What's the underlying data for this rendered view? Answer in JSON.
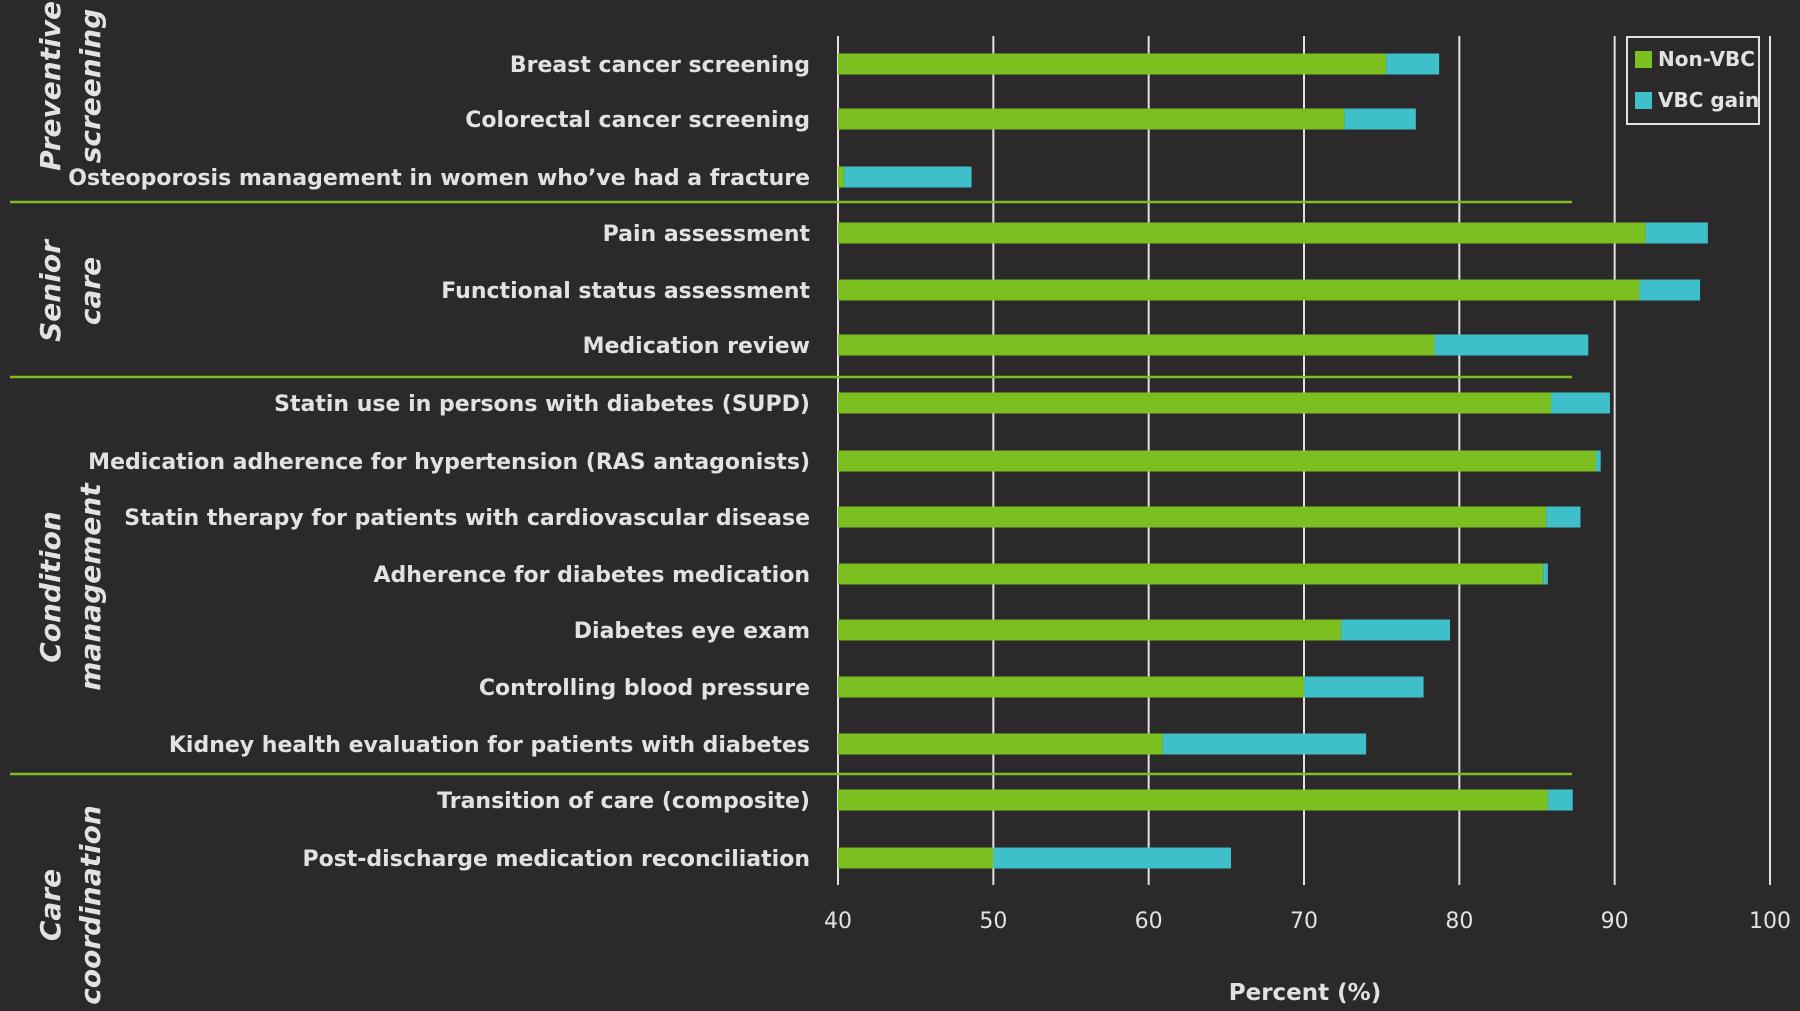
{
  "chart_data": {
    "type": "bar",
    "orientation": "horizontal",
    "stacked": true,
    "xlabel": "Percent (%)",
    "xlim": [
      40,
      100
    ],
    "xticks": [
      40,
      50,
      60,
      70,
      80,
      90,
      100
    ],
    "grid": "vertical",
    "legend_position": "top-right",
    "colors": {
      "Non-VBC": "#7bbf21",
      "VBC gain": "#3ebfc9",
      "background": "#2b292a",
      "text": "#e2e2e2",
      "gridline": "#e2e2e2",
      "divider": "#7bbf21"
    },
    "series_names": [
      "Non-VBC",
      "VBC gain"
    ],
    "groups": [
      {
        "label": [
          "Preventive",
          "screening"
        ],
        "items": [
          {
            "label": "Breast cancer screening",
            "non_vbc": 75.3,
            "vbc_gain": 3.4
          },
          {
            "label": "Colorectal cancer screening",
            "non_vbc": 72.6,
            "vbc_gain": 4.6
          },
          {
            "label": "Osteoporosis management in women who’ve had a fracture",
            "non_vbc": 40.4,
            "vbc_gain": 8.2
          }
        ]
      },
      {
        "label": [
          "Senior",
          "care"
        ],
        "items": [
          {
            "label": "Pain assessment",
            "non_vbc": 92.0,
            "vbc_gain": 4.0
          },
          {
            "label": "Functional status assessment",
            "non_vbc": 91.6,
            "vbc_gain": 3.9
          },
          {
            "label": "Medication review",
            "non_vbc": 78.4,
            "vbc_gain": 9.9
          }
        ]
      },
      {
        "label": [
          "Condition",
          "management"
        ],
        "items": [
          {
            "label": "Statin use in persons with diabetes (SUPD)",
            "non_vbc": 85.9,
            "vbc_gain": 3.8
          },
          {
            "label": "Medication adherence for hypertension (RAS antagonists)",
            "non_vbc": 88.8,
            "vbc_gain": 0.3
          },
          {
            "label": "Statin therapy for patients with cardiovascular disease",
            "non_vbc": 85.6,
            "vbc_gain": 2.2
          },
          {
            "label": "Adherence for diabetes medication",
            "non_vbc": 85.4,
            "vbc_gain": 0.3
          },
          {
            "label": "Diabetes eye exam",
            "non_vbc": 72.4,
            "vbc_gain": 7.0
          },
          {
            "label": "Controlling blood pressure",
            "non_vbc": 70.0,
            "vbc_gain": 7.7
          },
          {
            "label": "Kidney health evaluation for patients with diabetes",
            "non_vbc": 60.9,
            "vbc_gain": 13.1
          }
        ]
      },
      {
        "label": [
          "Care",
          "coordination"
        ],
        "items": [
          {
            "label": "Transition of care (composite)",
            "non_vbc": 85.7,
            "vbc_gain": 1.6
          },
          {
            "label": "Post-discharge medication reconciliation",
            "non_vbc": 50.0,
            "vbc_gain": 15.3
          }
        ]
      }
    ]
  }
}
